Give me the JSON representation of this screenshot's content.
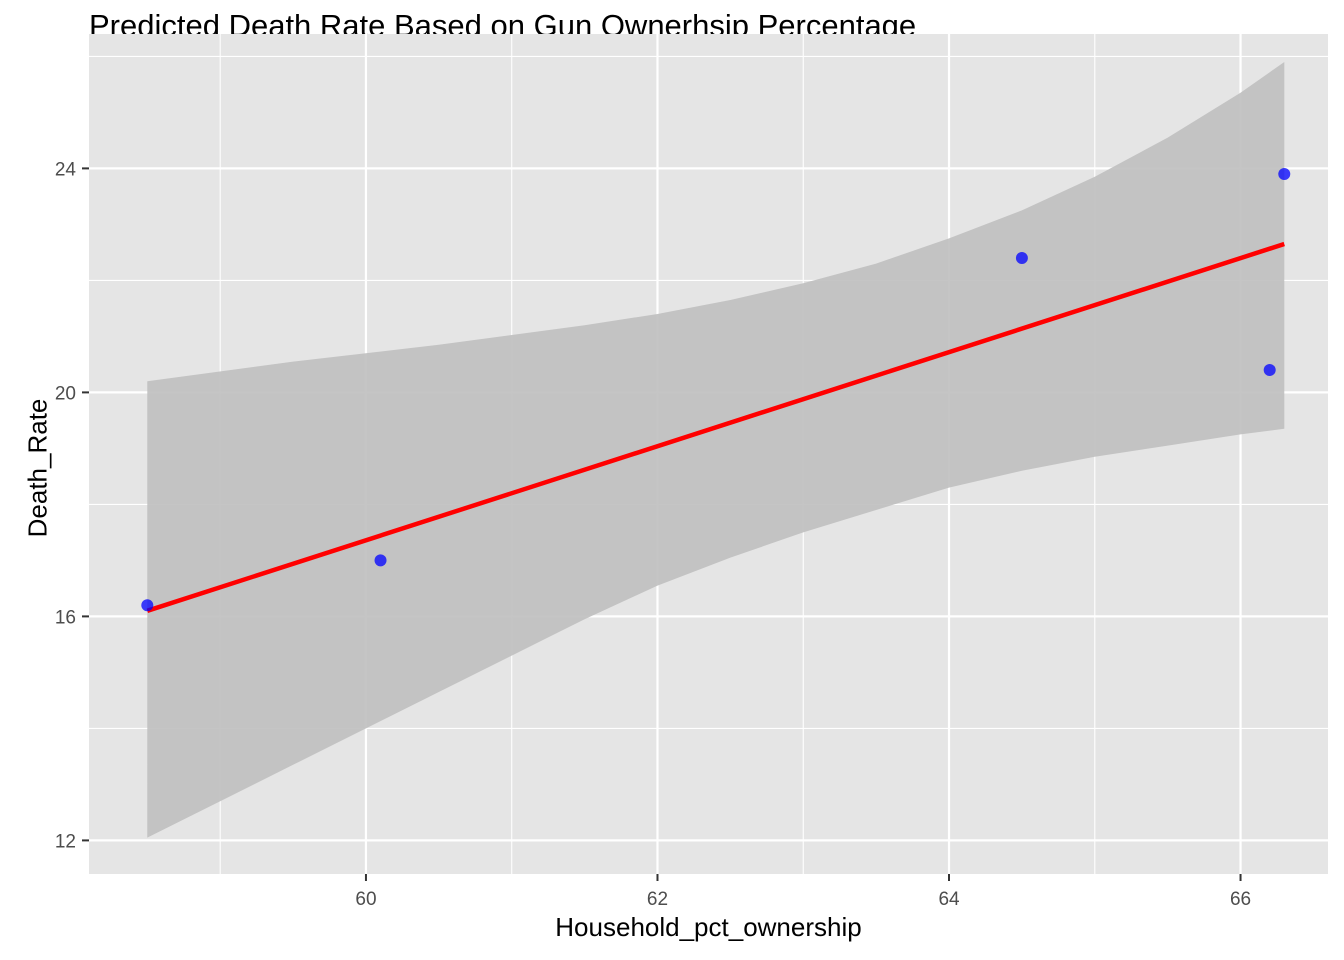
{
  "chart_data": {
    "type": "scatter",
    "title": "Predicted Death Rate Based on Gun Ownerhsip Percentage",
    "xlabel": "Household_pct_ownership",
    "ylabel": "Death_Rate",
    "xlim": [
      58.1,
      66.6
    ],
    "ylim": [
      11.4,
      26.4
    ],
    "x_ticks": [
      60,
      62,
      64,
      66
    ],
    "y_ticks": [
      12,
      16,
      20,
      24
    ],
    "grid": true,
    "points": [
      {
        "x": 58.5,
        "y": 16.2
      },
      {
        "x": 60.1,
        "y": 17.0
      },
      {
        "x": 64.5,
        "y": 22.4
      },
      {
        "x": 66.2,
        "y": 20.4
      },
      {
        "x": 66.3,
        "y": 23.9
      }
    ],
    "fit_line": {
      "x": [
        58.5,
        66.3
      ],
      "y": [
        16.1,
        22.65
      ]
    },
    "confidence_band": {
      "x": [
        58.5,
        59.5,
        60.5,
        61.5,
        62.0,
        62.5,
        63.0,
        63.5,
        64.0,
        64.5,
        65.0,
        65.5,
        66.0,
        66.3
      ],
      "upper": [
        20.2,
        20.55,
        20.85,
        21.2,
        21.4,
        21.65,
        21.95,
        22.3,
        22.75,
        23.25,
        23.85,
        24.55,
        25.35,
        25.9
      ],
      "lower": [
        12.05,
        13.35,
        14.65,
        15.95,
        16.55,
        17.05,
        17.5,
        17.9,
        18.3,
        18.6,
        18.85,
        19.05,
        19.25,
        19.35
      ]
    },
    "colors": {
      "panel": "#e5e5e5",
      "grid": "#ffffff",
      "band": "#bfbfbf",
      "line": "#ff0000",
      "points": "#0000ff"
    }
  }
}
